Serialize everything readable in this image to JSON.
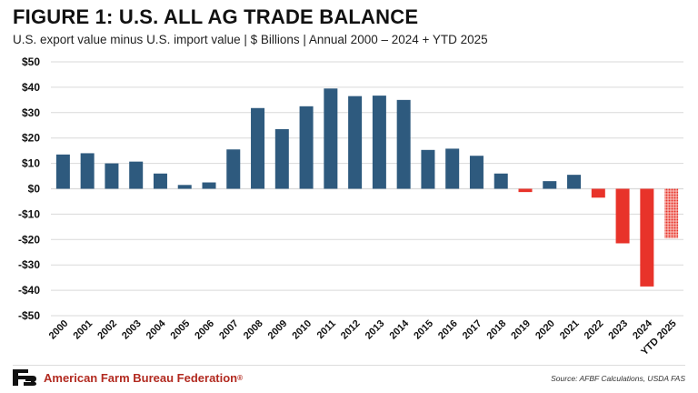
{
  "header": {
    "title": "FIGURE 1: U.S. ALL AG TRADE BALANCE",
    "subtitle": "U.S. export value minus U.S. import value | $ Billions | Annual 2000 – 2024 + YTD 2025"
  },
  "footer": {
    "org_name": "American Farm Bureau Federation",
    "org_trademark": "®",
    "source": "Source: AFBF Calculations, USDA FAS",
    "logo_icon": "afbf-logo-icon"
  },
  "colors": {
    "positive": "#2e5a7e",
    "negative": "#e8332a",
    "grid": "#d9d9d9",
    "org": "#b22a20"
  },
  "chart_data": {
    "type": "bar",
    "title": "FIGURE 1: U.S. ALL AG TRADE BALANCE",
    "subtitle": "U.S. export value minus U.S. import value | $ Billions | Annual 2000 – 2024 + YTD 2025",
    "xlabel": "",
    "ylabel": "",
    "ylim": [
      -50,
      50
    ],
    "yticks": [
      50,
      40,
      30,
      20,
      10,
      0,
      -10,
      -20,
      -30,
      -40,
      -50
    ],
    "ytick_labels": [
      "$50",
      "$40",
      "$30",
      "$20",
      "$10",
      "$0",
      "-$10",
      "-$20",
      "-$30",
      "-$40",
      "-$50"
    ],
    "grid": true,
    "categories": [
      "2000",
      "2001",
      "2002",
      "2003",
      "2004",
      "2005",
      "2006",
      "2007",
      "2008",
      "2009",
      "2010",
      "2011",
      "2012",
      "2013",
      "2014",
      "2015",
      "2016",
      "2017",
      "2018",
      "2019",
      "2020",
      "2021",
      "2022",
      "2023",
      "2024",
      "YTD 2025"
    ],
    "values": [
      13.5,
      14.0,
      10.0,
      10.7,
      6.0,
      1.5,
      2.5,
      15.5,
      31.8,
      23.5,
      32.5,
      39.5,
      36.5,
      36.7,
      35.0,
      15.3,
      15.8,
      13.0,
      6.0,
      -1.3,
      3.0,
      5.5,
      -3.5,
      -21.5,
      -38.5,
      -19.5
    ],
    "patterned": [
      "YTD 2025"
    ]
  }
}
